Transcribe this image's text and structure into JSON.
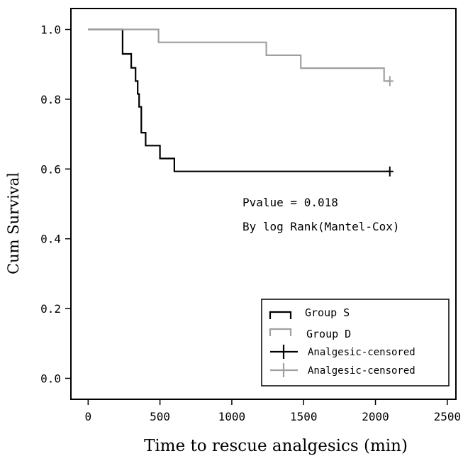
{
  "chart_data": {
    "type": "line",
    "title": "",
    "xlabel": "Time to rescue analgesics (min)",
    "ylabel": "Cum Survival",
    "xlim": [
      -120,
      2560
    ],
    "ylim": [
      -0.06,
      1.06
    ],
    "x_ticks": [
      0,
      500,
      1000,
      1500,
      2000,
      2500
    ],
    "y_ticks": [
      0.0,
      0.2,
      0.4,
      0.6,
      0.8,
      1.0
    ],
    "x_tick_labels": [
      "0",
      "500",
      "1000",
      "1500",
      "2000",
      "2500"
    ],
    "y_tick_labels": [
      "0.0",
      "0.2",
      "0.4",
      "0.6",
      "0.8",
      "1.0"
    ],
    "grid": false,
    "legend_position": "bottom-right",
    "annotations": [
      "Pvalue = 0.018",
      "By log Rank(Mantel-Cox)"
    ],
    "series": [
      {
        "name": "Group S",
        "color": "#000000",
        "step": true,
        "x": [
          0,
          230,
          240,
          300,
          330,
          345,
          355,
          370,
          400,
          500,
          600,
          2100
        ],
        "y": [
          1.0,
          1.0,
          0.93,
          0.89,
          0.852,
          0.815,
          0.778,
          0.704,
          0.667,
          0.63,
          0.593,
          0.593
        ]
      },
      {
        "name": "Group D",
        "color": "#a0a0a0",
        "step": true,
        "x": [
          0,
          490,
          1240,
          1480,
          2060,
          2100
        ],
        "y": [
          1.0,
          0.963,
          0.926,
          0.889,
          0.852,
          0.852
        ]
      }
    ],
    "censored": [
      {
        "name": "Analgesic-censored",
        "color": "#000000",
        "x": [
          2100
        ],
        "y": [
          0.593
        ]
      },
      {
        "name": "Analgesic-censored",
        "color": "#a0a0a0",
        "x": [
          2100
        ],
        "y": [
          0.852
        ]
      }
    ]
  }
}
